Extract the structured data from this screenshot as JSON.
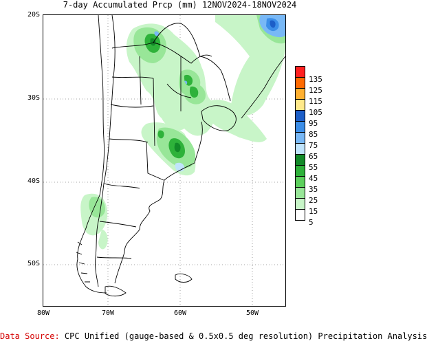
{
  "title": "7-day Accumulated Prcp (mm) 12NOV2024-18NOV2024",
  "y_axis": {
    "ticks": [
      {
        "label": "20S"
      },
      {
        "label": "30S"
      },
      {
        "label": "40S"
      },
      {
        "label": "50S"
      }
    ]
  },
  "x_axis": {
    "ticks": [
      {
        "label": "80W"
      },
      {
        "label": "70W"
      },
      {
        "label": "60W"
      },
      {
        "label": "50W"
      }
    ]
  },
  "legend": {
    "levels": [
      {
        "label": "135",
        "color": "#ff2020"
      },
      {
        "label": "125",
        "color": "#ff6a00"
      },
      {
        "label": "115",
        "color": "#ffb030"
      },
      {
        "label": "105",
        "color": "#ffe98a"
      },
      {
        "label": "95",
        "color": "#1c5ec8"
      },
      {
        "label": "85",
        "color": "#3c8ee8"
      },
      {
        "label": "75",
        "color": "#78b8f6"
      },
      {
        "label": "65",
        "color": "#c0e4fc"
      },
      {
        "label": "55",
        "color": "#128a28"
      },
      {
        "label": "45",
        "color": "#2eb23a"
      },
      {
        "label": "35",
        "color": "#5cd05c"
      },
      {
        "label": "25",
        "color": "#98e698"
      },
      {
        "label": "15",
        "color": "#c8f5c8"
      },
      {
        "label": "5",
        "color": "#ffffff"
      }
    ]
  },
  "footer": {
    "source_label": "Data Source:",
    "source_text": " CPC Unified (gauge-based & 0.5x0.5 deg resolution) Precipitation Analysis"
  }
}
